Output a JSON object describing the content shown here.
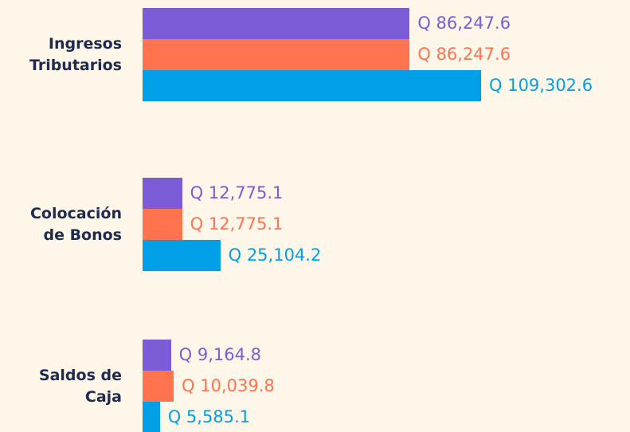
{
  "chart_data": {
    "type": "bar",
    "orientation": "horizontal",
    "categories": [
      "Ingresos Tributarios",
      "Colocación de Bonos",
      "Saldos de Caja"
    ],
    "series": [
      {
        "color": "#7b5cd6",
        "values": [
          86247.6,
          12775.1,
          9164.8
        ],
        "value_labels": [
          "Q 86,247.6",
          "Q 12,775.1",
          "Q 9,164.8"
        ]
      },
      {
        "color": "#ff734f",
        "values": [
          86247.6,
          12775.1,
          10039.8
        ],
        "value_labels": [
          "Q 86,247.6",
          "Q 12,775.1",
          "Q 10,039.8"
        ]
      },
      {
        "color": "#00a0e9",
        "values": [
          109302.6,
          25104.2,
          5585.1
        ],
        "value_labels": [
          "Q 109,302.6",
          "Q 25,104.2",
          "Q 5,585.1"
        ]
      }
    ]
  }
}
